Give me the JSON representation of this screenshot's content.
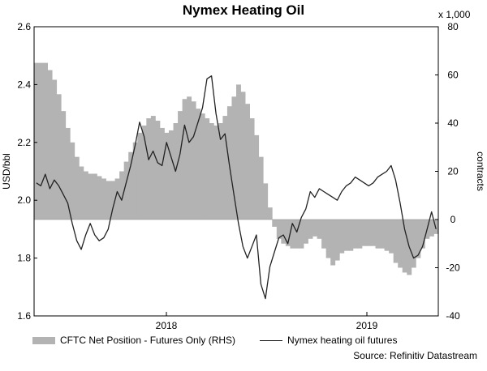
{
  "chart_data": {
    "type": "bar+line",
    "title": "Nymex Heating Oil",
    "y_left": {
      "label": "USD/bbl",
      "ticks": [
        "1.6",
        "1.8",
        "2.0",
        "2.2",
        "2.4",
        "2.6"
      ],
      "range": [
        1.6,
        2.6
      ]
    },
    "y_right": {
      "label": "contracts",
      "unit_note": "x 1,000",
      "ticks": [
        "-40",
        "-20",
        "0",
        "20",
        "40",
        "60",
        "80"
      ],
      "range": [
        -40,
        80
      ]
    },
    "x": {
      "ticks": [
        "2018",
        "2019"
      ],
      "range": [
        "2017-05",
        "2019-06"
      ]
    },
    "grid": false,
    "legend_position": "bottom",
    "series": [
      {
        "name": "CFTC Net Position - Futures Only (RHS)",
        "type": "bar",
        "axis": "right",
        "color": "#b3b3b3",
        "values": [
          65,
          65,
          65,
          62,
          58,
          52,
          45,
          38,
          32,
          26,
          22,
          20,
          19,
          19,
          18,
          17,
          16,
          16,
          17,
          20,
          24,
          28,
          32,
          36,
          39,
          42,
          43,
          41,
          38,
          36,
          37,
          40,
          45,
          50,
          51,
          49,
          46,
          44,
          42,
          40,
          39,
          40,
          43,
          47,
          51,
          56,
          53,
          48,
          42,
          35,
          26,
          15,
          5,
          -3,
          -8,
          -10,
          -11,
          -12,
          -12,
          -12,
          -10,
          -8,
          -7,
          -8,
          -12,
          -16,
          -19,
          -17,
          -14,
          -13,
          -13,
          -12,
          -12,
          -11,
          -11,
          -11,
          -12,
          -12,
          -13,
          -14,
          -18,
          -20,
          -22,
          -23,
          -20,
          -16,
          -12,
          -8,
          -7,
          -6
        ]
      },
      {
        "name": "Nymex heating oil futures",
        "type": "line",
        "axis": "left",
        "color": "#222222",
        "values": [
          2.06,
          2.05,
          2.09,
          2.04,
          2.07,
          2.05,
          2.02,
          1.99,
          1.92,
          1.86,
          1.83,
          1.88,
          1.92,
          1.88,
          1.86,
          1.87,
          1.9,
          1.97,
          2.03,
          2.0,
          2.06,
          2.12,
          2.19,
          2.27,
          2.22,
          2.14,
          2.17,
          2.13,
          2.12,
          2.2,
          2.15,
          2.1,
          2.16,
          2.26,
          2.2,
          2.22,
          2.27,
          2.32,
          2.42,
          2.43,
          2.3,
          2.21,
          2.23,
          2.12,
          2.02,
          1.92,
          1.84,
          1.8,
          1.84,
          1.88,
          1.71,
          1.66,
          1.77,
          1.82,
          1.87,
          1.88,
          1.85,
          1.92,
          1.89,
          1.94,
          1.97,
          2.03,
          2.01,
          2.04,
          2.03,
          2.02,
          2.01,
          2.0,
          2.03,
          2.05,
          2.06,
          2.08,
          2.07,
          2.06,
          2.05,
          2.06,
          2.08,
          2.09,
          2.1,
          2.12,
          2.07,
          1.99,
          1.9,
          1.84,
          1.8,
          1.81,
          1.84,
          1.9,
          1.96,
          1.9
        ]
      }
    ]
  },
  "legend": {
    "bar_label": "CFTC Net Position - Futures Only (RHS)",
    "line_label": "Nymex heating oil futures"
  },
  "source": "Source: Refinitiv Datastream"
}
